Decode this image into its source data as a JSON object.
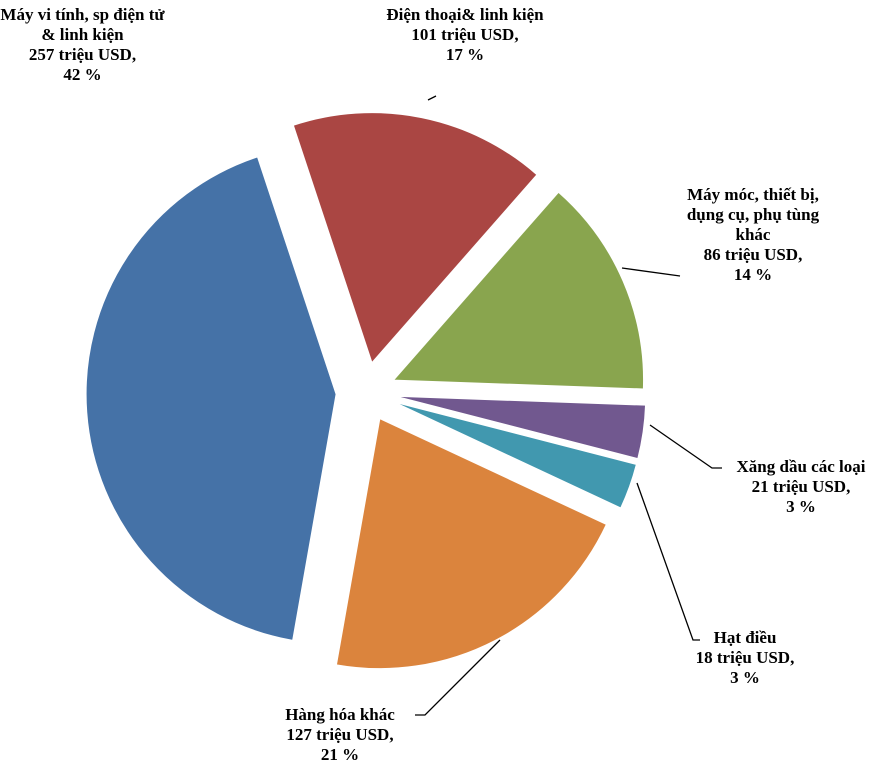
{
  "chart_data": {
    "type": "pie",
    "categories": [
      "Máy vi tính, sp điện tử & linh kiện",
      "Điện thoại& linh kiện",
      "Máy móc, thiết bị, dụng cụ, phụ tùng khác",
      "Xăng dầu các loại",
      "Hạt điều",
      "Hàng hóa khác"
    ],
    "values": [
      257,
      101,
      86,
      21,
      18,
      127
    ],
    "value_labels": [
      "257 triệu USD,",
      "101 triệu USD,",
      "86 triệu USD,",
      "21 triệu USD,",
      "18 triệu USD,",
      "127 triệu USD,"
    ],
    "percent_labels": [
      "42 %",
      "17 %",
      "14 %",
      "3 %",
      "3 %",
      "21 %"
    ],
    "colors": [
      "#4572a7",
      "#aa4643",
      "#89a54e",
      "#71588f",
      "#4198af",
      "#db843d"
    ]
  }
}
